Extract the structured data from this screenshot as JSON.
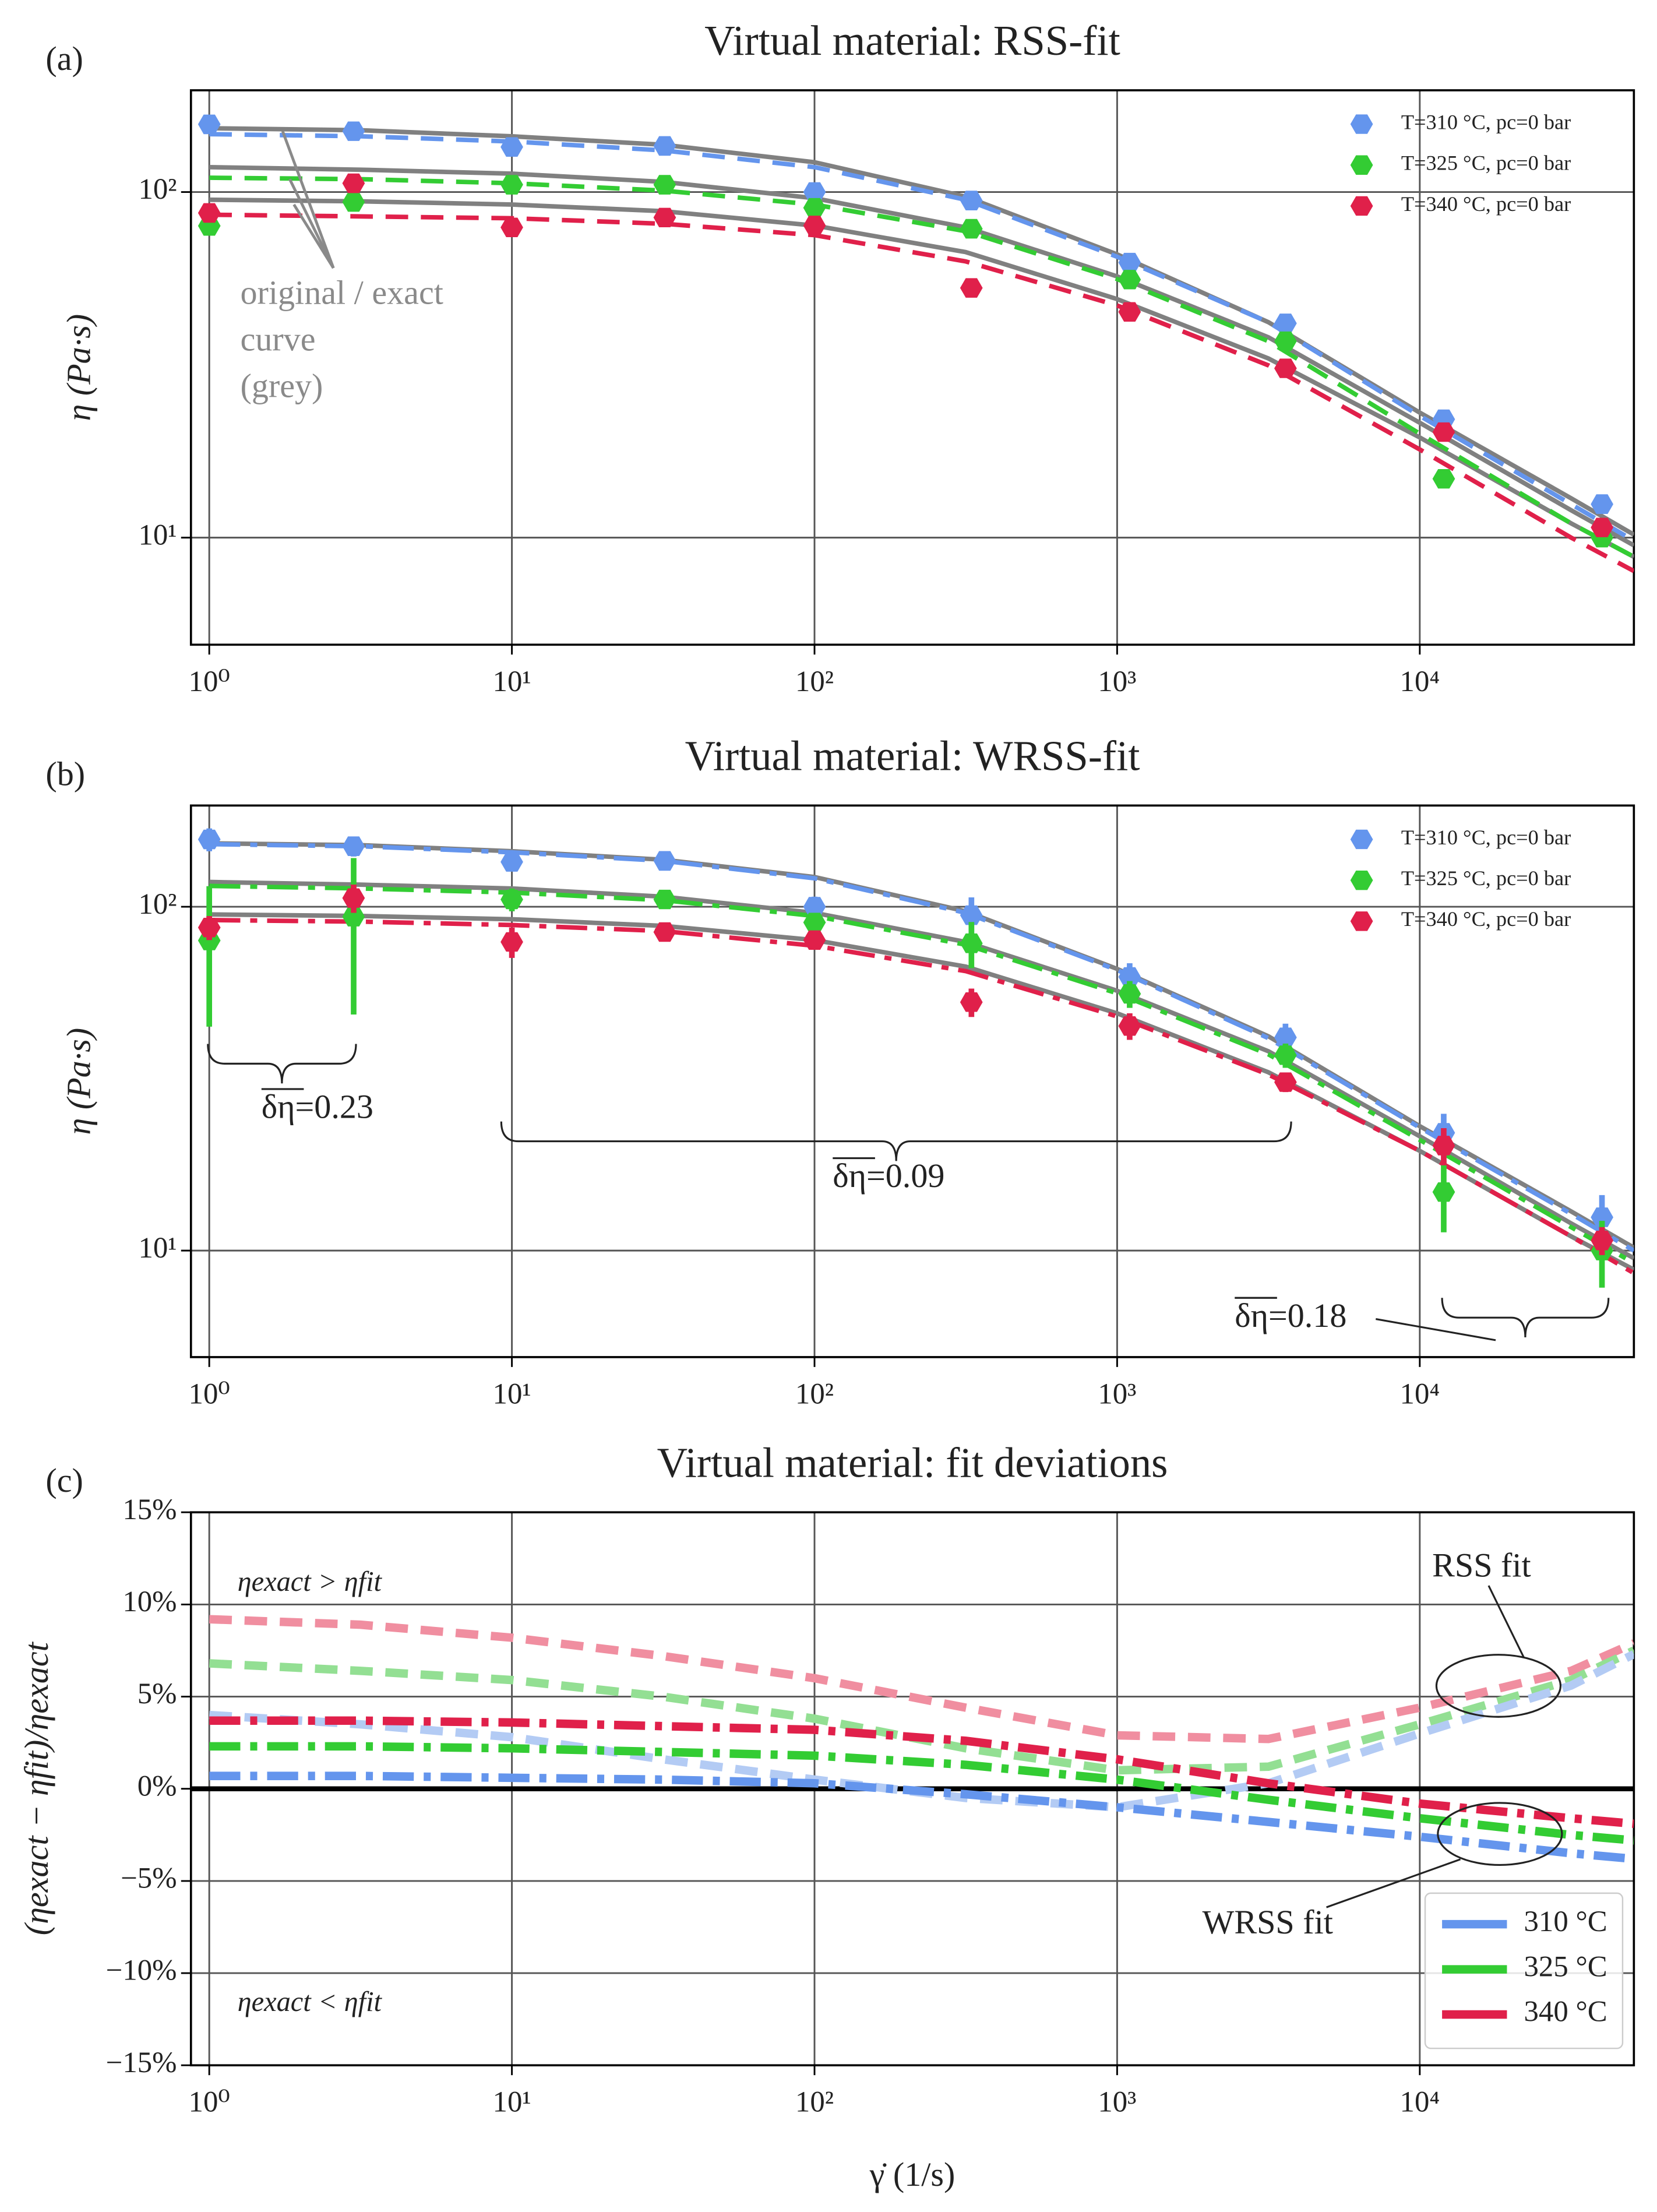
{
  "chart_data": [
    {
      "type": "scatter",
      "panel_label": "(a)",
      "title": "Virtual material: RSS-fit",
      "ylabel": "η (Pa·s)",
      "log_x": true,
      "log_y": true,
      "grid": true,
      "legend": "upper right",
      "xlim": [
        0.87,
        51000
      ],
      "ylim": [
        4.9,
        197
      ],
      "xticks": [
        {
          "value": 1,
          "label": "10⁰"
        },
        {
          "value": 10,
          "label": "10¹"
        },
        {
          "value": 100,
          "label": "10²"
        },
        {
          "value": 1000,
          "label": "10³"
        },
        {
          "value": 10000,
          "label": "10⁴"
        }
      ],
      "yticks": [
        {
          "value": 10,
          "label": "10¹"
        },
        {
          "value": 100,
          "label": "10²"
        }
      ],
      "annotations": [
        {
          "text": "original / exact"
        },
        {
          "text": "curve"
        },
        {
          "text": "(grey)"
        }
      ],
      "series": [
        {
          "type": "line",
          "dash": "solid",
          "color": "#808080",
          "x": [
            1,
            3.16,
            10,
            31.6,
            100,
            316,
            1000,
            3162,
            10000,
            31623,
            51000
          ],
          "values": [
            153,
            151,
            145,
            137,
            122,
            97,
            66,
            42,
            23,
            13,
            10.2
          ]
        },
        {
          "type": "line",
          "dash": "solid",
          "color": "#808080",
          "x": [
            1,
            3.16,
            10,
            31.6,
            100,
            316,
            1000,
            3162,
            10000,
            31623,
            51000
          ],
          "values": [
            118,
            116,
            113,
            107,
            96,
            79,
            57,
            38,
            21.5,
            12,
            9.5
          ]
        },
        {
          "type": "line",
          "dash": "solid",
          "color": "#808080",
          "x": [
            1,
            3.16,
            10,
            31.6,
            100,
            316,
            1000,
            3162,
            10000,
            31623,
            51000
          ],
          "values": [
            95,
            94,
            92,
            88,
            80,
            67,
            49,
            33,
            19.5,
            11,
            8.8
          ]
        },
        {
          "type": "line",
          "dash": "dashed",
          "color": "#6495ed",
          "x": [
            1,
            3.16,
            10,
            31.6,
            100,
            316,
            1000,
            3162,
            10000,
            31623,
            51000
          ],
          "values": [
            147,
            145,
            140,
            132,
            118,
            95,
            65,
            42,
            22.5,
            12.5,
            9.8
          ]
        },
        {
          "type": "line",
          "dash": "dashed",
          "color": "#33cc33",
          "x": [
            1,
            3.16,
            10,
            31.6,
            100,
            316,
            1000,
            3162,
            10000,
            31623,
            51000
          ],
          "values": [
            110,
            109,
            106,
            101,
            92,
            77,
            56,
            37,
            20,
            11,
            8.8
          ]
        },
        {
          "type": "line",
          "dash": "dashed",
          "color": "#e0204a",
          "x": [
            1,
            3.16,
            10,
            31.6,
            100,
            316,
            1000,
            3162,
            10000,
            31623,
            51000
          ],
          "values": [
            86,
            85,
            84,
            81,
            75,
            63,
            47,
            31.5,
            18,
            10,
            8
          ]
        },
        {
          "type": "scatter",
          "name": "T=310 °C, pc=0 bar",
          "color": "#6495ed",
          "x": [
            1,
            3,
            10,
            32,
            100,
            330,
            1100,
            3600,
            12000,
            40000
          ],
          "values": [
            157,
            150,
            135,
            136,
            100,
            94.5,
            62.5,
            41.7,
            22,
            12.5
          ]
        },
        {
          "type": "scatter",
          "name": "T=325 °C, pc=0 bar",
          "color": "#33cc33",
          "x": [
            1,
            3,
            10,
            32,
            100,
            330,
            1100,
            3600,
            12000,
            40000
          ],
          "values": [
            79.8,
            93.6,
            105,
            105,
            90,
            78.3,
            55.8,
            37,
            14.8,
            10
          ]
        },
        {
          "type": "scatter",
          "name": "T=340 °C, pc=0 bar",
          "color": "#e0204a",
          "x": [
            1,
            3,
            10,
            32,
            100,
            330,
            1100,
            3600,
            12000,
            40000
          ],
          "values": [
            87,
            106,
            79,
            84.4,
            80,
            52.8,
            45,
            30.9,
            20.2,
            10.7
          ]
        }
      ]
    },
    {
      "type": "scatter",
      "panel_label": "(b)",
      "title": "Virtual material: WRSS-fit",
      "ylabel": "η (Pa·s)",
      "log_x": true,
      "log_y": true,
      "grid": true,
      "legend": "upper right",
      "xlim": [
        0.87,
        51000
      ],
      "ylim": [
        4.9,
        197
      ],
      "xticks": [
        {
          "value": 1,
          "label": "10⁰"
        },
        {
          "value": 10,
          "label": "10¹"
        },
        {
          "value": 100,
          "label": "10²"
        },
        {
          "value": 1000,
          "label": "10³"
        },
        {
          "value": 10000,
          "label": "10⁴"
        }
      ],
      "yticks": [
        {
          "value": 10,
          "label": "10¹"
        },
        {
          "value": 100,
          "label": "10²"
        }
      ],
      "annotations": [
        {
          "text": "δη=0.23"
        },
        {
          "text": "δη=0.09"
        },
        {
          "text": "δη=0.18"
        }
      ],
      "series": [
        {
          "type": "line",
          "dash": "solid",
          "color": "#808080",
          "x": [
            1,
            3.16,
            10,
            31.6,
            100,
            316,
            1000,
            3162,
            10000,
            31623,
            51000
          ],
          "values": [
            153,
            151,
            145,
            137,
            122,
            97,
            66,
            42,
            23,
            13,
            10.2
          ]
        },
        {
          "type": "line",
          "dash": "solid",
          "color": "#808080",
          "x": [
            1,
            3.16,
            10,
            31.6,
            100,
            316,
            1000,
            3162,
            10000,
            31623,
            51000
          ],
          "values": [
            118,
            116,
            113,
            107,
            96,
            79,
            57,
            38,
            21.5,
            12,
            9.5
          ]
        },
        {
          "type": "line",
          "dash": "solid",
          "color": "#808080",
          "x": [
            1,
            3.16,
            10,
            31.6,
            100,
            316,
            1000,
            3162,
            10000,
            31623,
            51000
          ],
          "values": [
            95,
            94,
            92,
            88,
            80,
            67,
            49,
            33,
            19.5,
            11,
            8.8
          ]
        },
        {
          "type": "line",
          "dash": "dashdot",
          "color": "#6495ed",
          "x": [
            1,
            3.16,
            10,
            31.6,
            100,
            316,
            1000,
            3162,
            10000,
            31623,
            51000
          ],
          "values": [
            152,
            150,
            144,
            136,
            121,
            96,
            65.5,
            41.5,
            22.8,
            12.8,
            10
          ]
        },
        {
          "type": "line",
          "dash": "dashdot",
          "color": "#33cc33",
          "x": [
            1,
            3.16,
            10,
            31.6,
            100,
            316,
            1000,
            3162,
            10000,
            31623,
            51000
          ],
          "values": [
            115,
            113,
            110,
            104.5,
            94,
            77.5,
            56,
            37.2,
            21,
            11.7,
            9.2
          ]
        },
        {
          "type": "line",
          "dash": "dashdot",
          "color": "#e0204a",
          "x": [
            1,
            3.16,
            10,
            31.6,
            100,
            316,
            1000,
            3162,
            10000,
            31623,
            51000
          ],
          "values": [
            91.5,
            90.5,
            88.5,
            85,
            77,
            65,
            48,
            32.5,
            19.5,
            11,
            8.6
          ]
        },
        {
          "type": "scatter",
          "name": "T=310 °C, pc=0 bar",
          "color": "#6495ed",
          "x": [
            1,
            3,
            10,
            32,
            100,
            330,
            1100,
            3600,
            12000,
            40000
          ],
          "values": [
            157,
            150,
            135,
            136,
            100,
            94.5,
            62.5,
            41.7,
            22,
            12.5
          ],
          "errors": [
            12,
            10,
            8,
            8,
            7,
            12,
            6,
            4,
            3,
            2
          ]
        },
        {
          "type": "scatter",
          "name": "T=325 °C, pc=0 bar",
          "color": "#33cc33",
          "x": [
            1,
            3,
            10,
            32,
            100,
            330,
            1100,
            3600,
            12000,
            40000
          ],
          "values": [
            79.8,
            93.6,
            105,
            105,
            90,
            78.3,
            55.8,
            37,
            14.8,
            10
          ],
          "errors": [
            35,
            45,
            8,
            6,
            6,
            12,
            5,
            3,
            3.5,
            2.2
          ]
        },
        {
          "type": "scatter",
          "name": "T=340 °C, pc=0 bar",
          "color": "#e0204a",
          "x": [
            1,
            3,
            10,
            32,
            100,
            330,
            1100,
            3600,
            12000,
            40000
          ],
          "values": [
            87,
            106,
            79,
            84.4,
            80,
            52.8,
            45,
            30.9,
            20.2,
            10.7
          ],
          "errors": [
            7,
            10,
            8,
            5,
            5,
            5,
            4,
            2,
            2.5,
            1
          ]
        }
      ]
    },
    {
      "type": "line",
      "panel_label": "(c)",
      "title": "Virtual material: fit deviations",
      "ylabel": "(ηexact − ηfit)/ηexact",
      "xlabel": "γ̇ (1/s)",
      "log_x": true,
      "log_y": false,
      "grid": true,
      "zero_line": true,
      "legend": "lower right",
      "xlim": [
        0.87,
        51000
      ],
      "ylim": [
        -15,
        15
      ],
      "xticks": [
        {
          "value": 1,
          "label": "10⁰"
        },
        {
          "value": 10,
          "label": "10¹"
        },
        {
          "value": 100,
          "label": "10²"
        },
        {
          "value": 1000,
          "label": "10³"
        },
        {
          "value": 10000,
          "label": "10⁴"
        }
      ],
      "yticks": [
        {
          "value": -15,
          "label": "−15%"
        },
        {
          "value": -10,
          "label": "−10%"
        },
        {
          "value": -5,
          "label": "−5%"
        },
        {
          "value": 0,
          "label": "0%"
        },
        {
          "value": 5,
          "label": "5%"
        },
        {
          "value": 10,
          "label": "10%"
        },
        {
          "value": 15,
          "label": "15%"
        }
      ],
      "annotations": [
        {
          "text": "ηexact > ηfit"
        },
        {
          "text": "ηexact < ηfit"
        },
        {
          "text": "RSS fit"
        },
        {
          "text": "WRSS fit"
        }
      ],
      "series": [
        {
          "type": "line",
          "dash": "dashed",
          "color": "#f08ea0",
          "x": [
            1,
            3.16,
            10,
            31.6,
            100,
            316,
            1000,
            3162,
            10000,
            31623,
            51000
          ],
          "values": [
            9.2,
            8.9,
            8.2,
            7.2,
            6.0,
            4.4,
            2.9,
            2.7,
            4.4,
            6.4,
            7.9
          ]
        },
        {
          "type": "line",
          "dash": "dashed",
          "color": "#93df93",
          "x": [
            1,
            3.16,
            10,
            31.6,
            100,
            316,
            1000,
            3162,
            10000,
            31623,
            51000
          ],
          "values": [
            6.8,
            6.4,
            5.9,
            5.0,
            3.8,
            2.2,
            1.0,
            1.2,
            3.5,
            5.9,
            7.5
          ]
        },
        {
          "type": "line",
          "dash": "dashed",
          "color": "#b3cbf4",
          "x": [
            1,
            3.16,
            10,
            31.6,
            100,
            316,
            1000,
            3162,
            10000,
            31623,
            51000
          ],
          "values": [
            4.0,
            3.5,
            2.8,
            1.6,
            0.5,
            -0.5,
            -1.0,
            0.3,
            3.0,
            5.6,
            7.3
          ]
        },
        {
          "type": "line",
          "dash": "dashdot",
          "name": "310 °C",
          "color": "#6495ed",
          "x": [
            1,
            3.16,
            10,
            31.6,
            100,
            316,
            1000,
            3162,
            10000,
            31623,
            51000
          ],
          "values": [
            0.7,
            0.7,
            0.6,
            0.5,
            0.3,
            -0.3,
            -1.0,
            -1.8,
            -2.6,
            -3.5,
            -3.8
          ]
        },
        {
          "type": "line",
          "dash": "dashdot",
          "name": "325 °C",
          "color": "#33cc33",
          "x": [
            1,
            3.16,
            10,
            31.6,
            100,
            316,
            1000,
            3162,
            10000,
            31623,
            51000
          ],
          "values": [
            2.3,
            2.3,
            2.2,
            2.0,
            1.8,
            1.3,
            0.5,
            -0.6,
            -1.6,
            -2.5,
            -2.8
          ]
        },
        {
          "type": "line",
          "dash": "dashdot",
          "name": "340 °C",
          "color": "#e0204a",
          "x": [
            1,
            3.16,
            10,
            31.6,
            100,
            316,
            1000,
            3162,
            10000,
            31623,
            51000
          ],
          "values": [
            3.7,
            3.7,
            3.6,
            3.4,
            3.2,
            2.6,
            1.6,
            0.3,
            -0.8,
            -1.6,
            -1.9
          ]
        }
      ]
    }
  ]
}
